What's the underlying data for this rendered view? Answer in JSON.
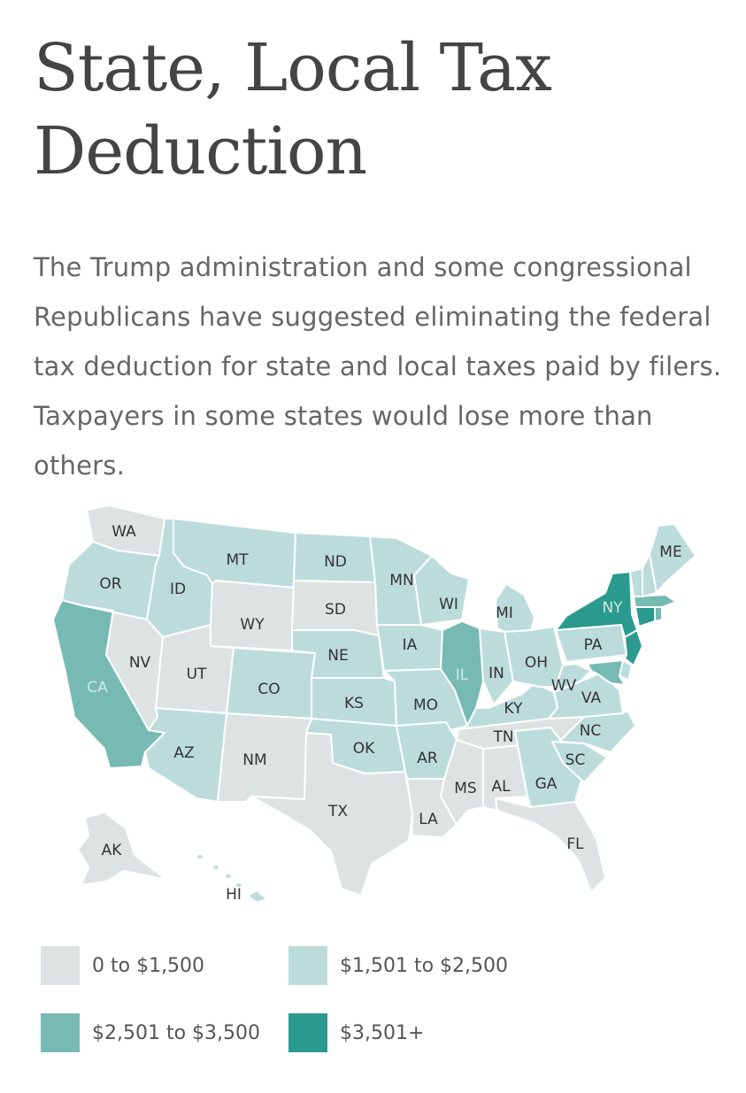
{
  "title": "State, Local Tax Deduction",
  "intro": "The Trump administration and some congressional Republicans have suggested eliminating the federal tax deduction for state and local taxes paid by filers. Taxpayers in some states would lose more than others.",
  "colors": {
    "tier0": "#dde3e3",
    "tier1": "#bcdcdb",
    "tier2": "#76bab3",
    "tier3": "#2a9a8e"
  },
  "legend": [
    {
      "label": "0 to $1,500",
      "tier": 0
    },
    {
      "label": "$1,501 to $2,500",
      "tier": 1
    },
    {
      "label": "$2,501 to $3,500",
      "tier": 2
    },
    {
      "label": "$3,501+",
      "tier": 3
    }
  ],
  "states": [
    {
      "abbr": "WA",
      "tier": 0
    },
    {
      "abbr": "OR",
      "tier": 1
    },
    {
      "abbr": "CA",
      "tier": 2
    },
    {
      "abbr": "NV",
      "tier": 0
    },
    {
      "abbr": "ID",
      "tier": 1
    },
    {
      "abbr": "MT",
      "tier": 1
    },
    {
      "abbr": "WY",
      "tier": 0
    },
    {
      "abbr": "UT",
      "tier": 0
    },
    {
      "abbr": "AZ",
      "tier": 1
    },
    {
      "abbr": "CO",
      "tier": 1
    },
    {
      "abbr": "NM",
      "tier": 0
    },
    {
      "abbr": "ND",
      "tier": 1
    },
    {
      "abbr": "SD",
      "tier": 0
    },
    {
      "abbr": "NE",
      "tier": 1
    },
    {
      "abbr": "KS",
      "tier": 1
    },
    {
      "abbr": "OK",
      "tier": 1
    },
    {
      "abbr": "TX",
      "tier": 0
    },
    {
      "abbr": "MN",
      "tier": 1
    },
    {
      "abbr": "IA",
      "tier": 1
    },
    {
      "abbr": "MO",
      "tier": 1
    },
    {
      "abbr": "AR",
      "tier": 1
    },
    {
      "abbr": "LA",
      "tier": 0
    },
    {
      "abbr": "WI",
      "tier": 1
    },
    {
      "abbr": "IL",
      "tier": 2
    },
    {
      "abbr": "MS",
      "tier": 0
    },
    {
      "abbr": "AL",
      "tier": 0
    },
    {
      "abbr": "TN",
      "tier": 0
    },
    {
      "abbr": "KY",
      "tier": 1
    },
    {
      "abbr": "IN",
      "tier": 1
    },
    {
      "abbr": "MI",
      "tier": 1
    },
    {
      "abbr": "OH",
      "tier": 1
    },
    {
      "abbr": "GA",
      "tier": 1
    },
    {
      "abbr": "FL",
      "tier": 0
    },
    {
      "abbr": "SC",
      "tier": 1
    },
    {
      "abbr": "NC",
      "tier": 1
    },
    {
      "abbr": "VA",
      "tier": 1
    },
    {
      "abbr": "WV",
      "tier": 1
    },
    {
      "abbr": "PA",
      "tier": 1
    },
    {
      "abbr": "NY",
      "tier": 3
    },
    {
      "abbr": "NJ",
      "tier": 3
    },
    {
      "abbr": "DE",
      "tier": 1
    },
    {
      "abbr": "MD",
      "tier": 2
    },
    {
      "abbr": "CT",
      "tier": 3
    },
    {
      "abbr": "RI",
      "tier": 2
    },
    {
      "abbr": "MA",
      "tier": 2
    },
    {
      "abbr": "VT",
      "tier": 1
    },
    {
      "abbr": "NH",
      "tier": 1
    },
    {
      "abbr": "ME",
      "tier": 1
    },
    {
      "abbr": "AK",
      "tier": 0
    },
    {
      "abbr": "HI",
      "tier": 1
    }
  ]
}
